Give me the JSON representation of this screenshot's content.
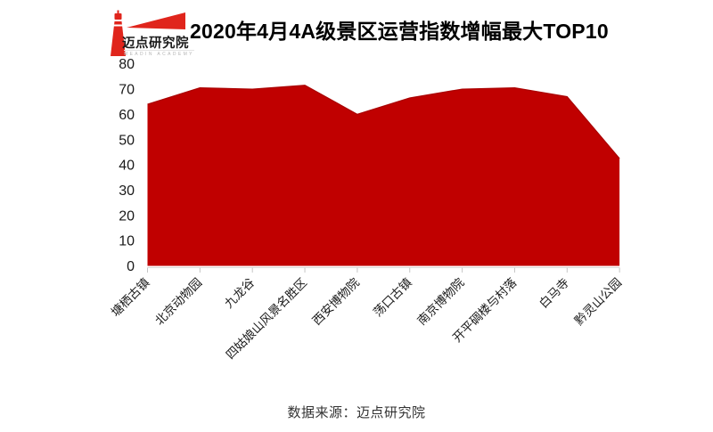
{
  "header": {
    "logo": {
      "name": "迈点研究院",
      "subtitle": "MEADIN ACADEMY"
    },
    "title": "2020年4月4A级景区运营指数增幅最大TOP10"
  },
  "chart_data": {
    "type": "area",
    "title": "2020年4月4A级景区运营指数增幅最大TOP10",
    "categories": [
      "塘栖古镇",
      "北京动物园",
      "九龙谷",
      "四姑娘山风景名胜区",
      "西安博物院",
      "荡口古镇",
      "南京博物院",
      "开平碉楼与村落",
      "白马寺",
      "黔灵山公园"
    ],
    "values": [
      64,
      70.5,
      70,
      71.5,
      60,
      66.5,
      70,
      70.5,
      67,
      42.5
    ],
    "ylim": [
      0,
      80
    ],
    "yticks": [
      0,
      10,
      20,
      30,
      40,
      50,
      60,
      70,
      80
    ],
    "xlabel": "",
    "ylabel": "",
    "grid": false,
    "legend": false,
    "label_rotation_deg": 45,
    "colors": {
      "fill": "#c00000",
      "edge": "#aa0000",
      "axis_line": "#d9d9d9",
      "tick": "#c6c6c6",
      "text": "#1a1a1a"
    }
  },
  "footer": {
    "source": "数据来源：迈点研究院"
  },
  "brand": {
    "logo_red": "#e0251c",
    "title_color": "#000000"
  }
}
